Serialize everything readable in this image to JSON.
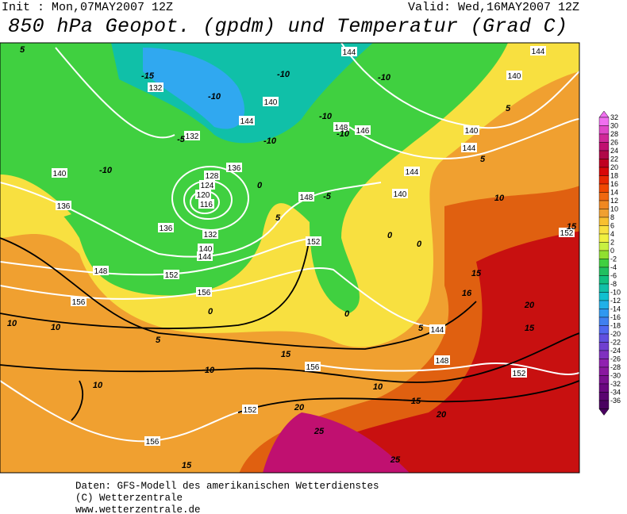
{
  "header": {
    "init": "Init : Mon,07MAY2007 12Z",
    "valid": "Valid: Wed,16MAY2007 12Z",
    "title": "850 hPa Geopot. (gpdm) und Temperatur (Grad C)"
  },
  "map": {
    "geopotential_labels": [
      132,
      144,
      144,
      140,
      140,
      144,
      148,
      146,
      140,
      132,
      144,
      136,
      140,
      128,
      144,
      124,
      140,
      120,
      148,
      116,
      136,
      136,
      132,
      152,
      152,
      140,
      144,
      148,
      152,
      156,
      156,
      144,
      148,
      156,
      152,
      152,
      156
    ],
    "temperature_labels": [
      5,
      -15,
      -10,
      -10,
      -10,
      5,
      -10,
      -10,
      -5,
      -10,
      5,
      -10,
      0,
      -5,
      10,
      5,
      15,
      0,
      0,
      15,
      16,
      20,
      0,
      0,
      10,
      10,
      5,
      15,
      5,
      15,
      10,
      10,
      10,
      15,
      20,
      20,
      25,
      25,
      15
    ]
  },
  "colorbar": {
    "labels": [
      32,
      30,
      28,
      26,
      24,
      22,
      20,
      18,
      16,
      14,
      12,
      10,
      8,
      6,
      4,
      2,
      0,
      -2,
      -4,
      -6,
      -8,
      -10,
      -12,
      -14,
      -16,
      -18,
      -20,
      -22,
      -24,
      -26,
      -28,
      -30,
      -32,
      -34,
      -36
    ],
    "colors": [
      "#f070f0",
      "#e048c8",
      "#d02898",
      "#c01070",
      "#b00848",
      "#c00020",
      "#d80808",
      "#e82800",
      "#f04800",
      "#f06810",
      "#f08820",
      "#f0a030",
      "#f8c030",
      "#f8e040",
      "#f0f040",
      "#c8f040",
      "#90e030",
      "#40d040",
      "#20c060",
      "#10c080",
      "#10c0a8",
      "#10c0d0",
      "#20b0e8",
      "#3098f0",
      "#4080f0",
      "#5068f0",
      "#6050e0",
      "#7040d0",
      "#8030c0",
      "#9020b0",
      "#8a18a0",
      "#7a1090",
      "#6a0880",
      "#5a0470",
      "#4a0060"
    ]
  },
  "footer": {
    "line1": "Daten: GFS-Modell des amerikanischen Wetterdienstes",
    "line2": "(C) Wetterzentrale",
    "line3": "www.wetterzentrale.de"
  }
}
